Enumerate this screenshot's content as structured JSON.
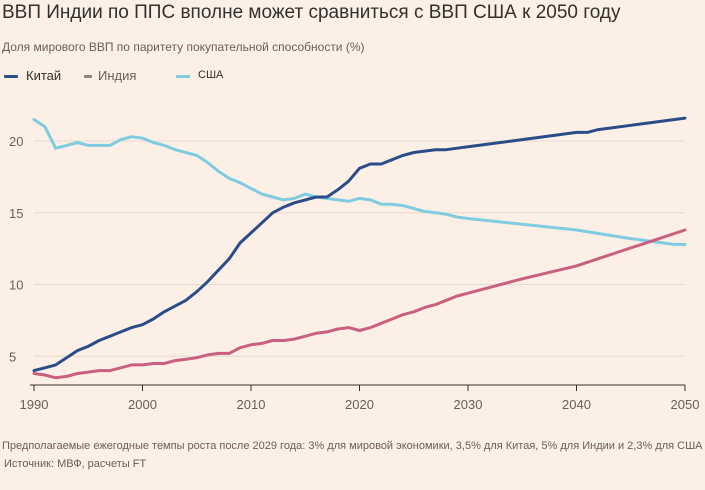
{
  "header": {
    "title": "ВВП Индии по ППС вполне может сравниться с ВВП США к 2050 году",
    "subtitle": "Доля мирового ВВП по паритету покупательной способности (%)"
  },
  "footer": {
    "note": "Предполагаемые ежегодные темпы роста после 2029 года: 3% для мировой экономики, 3,5% для Китая, 5% для Индии и 2,3% для США",
    "source": "Источник: МВФ, расчеты FT"
  },
  "chart_data": {
    "type": "line",
    "title": "ВВП Индии по ППС вполне может сравниться с ВВП США к 2050 году",
    "subtitle": "Доля мирового ВВП по паритету покупательной способности (%)",
    "xlabel": "",
    "ylabel": "",
    "xlim": [
      1990,
      2050
    ],
    "ylim": [
      3,
      23
    ],
    "x_ticks": [
      1990,
      2000,
      2010,
      2020,
      2030,
      2040,
      2050
    ],
    "y_ticks": [
      5,
      10,
      15,
      20
    ],
    "grid": "horizontal",
    "legend_position": "top-left",
    "series": [
      {
        "name": "Китай",
        "color": "#2a4d8a",
        "x": [
          1990,
          1991,
          1992,
          1993,
          1994,
          1995,
          1996,
          1997,
          1998,
          1999,
          2000,
          2001,
          2002,
          2003,
          2004,
          2005,
          2006,
          2007,
          2008,
          2009,
          2010,
          2011,
          2012,
          2013,
          2014,
          2015,
          2016,
          2017,
          2018,
          2019,
          2020,
          2021,
          2022,
          2023,
          2024,
          2025,
          2026,
          2027,
          2028,
          2029,
          2030,
          2035,
          2040,
          2041,
          2042,
          2045,
          2050
        ],
        "values": [
          4.0,
          4.2,
          4.4,
          4.9,
          5.4,
          5.7,
          6.1,
          6.4,
          6.7,
          7.0,
          7.2,
          7.6,
          8.1,
          8.5,
          8.9,
          9.5,
          10.2,
          11.0,
          11.8,
          12.9,
          13.6,
          14.3,
          15.0,
          15.4,
          15.7,
          15.9,
          16.1,
          16.1,
          16.6,
          17.2,
          18.1,
          18.4,
          18.4,
          18.7,
          19.0,
          19.2,
          19.3,
          19.4,
          19.4,
          19.5,
          19.6,
          20.1,
          20.6,
          20.6,
          20.8,
          21.1,
          21.6
        ]
      },
      {
        "name": "Индия",
        "color": "#c8607f",
        "x": [
          1990,
          1991,
          1992,
          1993,
          1994,
          1995,
          1996,
          1997,
          1998,
          1999,
          2000,
          2001,
          2002,
          2003,
          2004,
          2005,
          2006,
          2007,
          2008,
          2009,
          2010,
          2011,
          2012,
          2013,
          2014,
          2015,
          2016,
          2017,
          2018,
          2019,
          2020,
          2021,
          2022,
          2023,
          2024,
          2025,
          2026,
          2027,
          2028,
          2029,
          2030,
          2035,
          2040,
          2042,
          2044,
          2046,
          2048,
          2050
        ],
        "values": [
          3.8,
          3.7,
          3.5,
          3.6,
          3.8,
          3.9,
          4.0,
          4.0,
          4.2,
          4.4,
          4.4,
          4.5,
          4.5,
          4.7,
          4.8,
          4.9,
          5.1,
          5.2,
          5.2,
          5.6,
          5.8,
          5.9,
          6.1,
          6.1,
          6.2,
          6.4,
          6.6,
          6.7,
          6.9,
          7.0,
          6.8,
          7.0,
          7.3,
          7.6,
          7.9,
          8.1,
          8.4,
          8.6,
          8.9,
          9.2,
          9.4,
          10.4,
          11.3,
          11.8,
          12.3,
          12.8,
          13.3,
          13.8
        ]
      },
      {
        "name": "США",
        "color": "#7fcbe0",
        "x": [
          1990,
          1991,
          1992,
          1993,
          1994,
          1995,
          1996,
          1997,
          1998,
          1999,
          2000,
          2001,
          2002,
          2003,
          2004,
          2005,
          2006,
          2007,
          2008,
          2009,
          2010,
          2011,
          2012,
          2013,
          2014,
          2015,
          2016,
          2017,
          2018,
          2019,
          2020,
          2021,
          2022,
          2023,
          2024,
          2025,
          2026,
          2027,
          2028,
          2029,
          2030,
          2035,
          2040,
          2045,
          2049,
          2050
        ],
        "values": [
          21.5,
          21.0,
          19.5,
          19.7,
          19.9,
          19.7,
          19.7,
          19.7,
          20.1,
          20.3,
          20.2,
          19.9,
          19.7,
          19.4,
          19.2,
          19.0,
          18.5,
          17.9,
          17.4,
          17.1,
          16.7,
          16.3,
          16.1,
          15.9,
          16.0,
          16.3,
          16.1,
          16.0,
          15.9,
          15.8,
          16.0,
          15.9,
          15.6,
          15.6,
          15.5,
          15.3,
          15.1,
          15.0,
          14.9,
          14.7,
          14.6,
          14.2,
          13.8,
          13.2,
          12.8,
          12.8
        ]
      }
    ]
  }
}
